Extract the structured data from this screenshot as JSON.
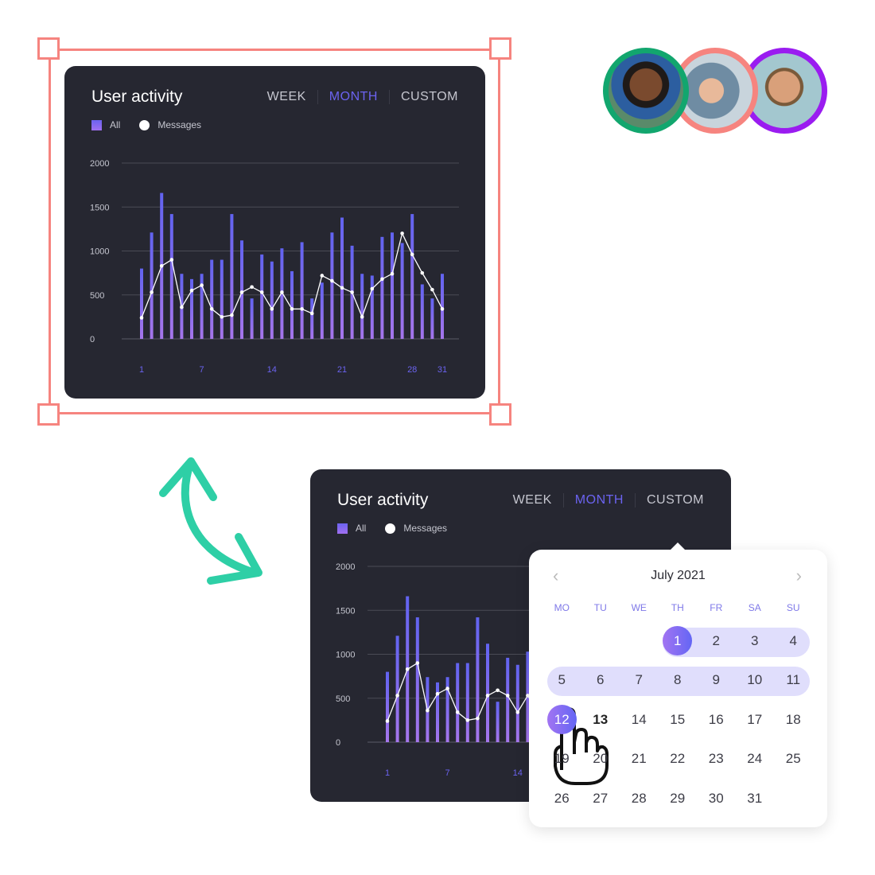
{
  "widget": {
    "title": "User activity",
    "tabs": [
      "WEEK",
      "MONTH",
      "CUSTOM"
    ],
    "active_tab": "MONTH",
    "legend": [
      {
        "label": "All",
        "color": "#6b63f0"
      },
      {
        "label": "Messages",
        "color": "#ffffff"
      }
    ]
  },
  "chart_data": {
    "type": "bar+line",
    "ylim": [
      0,
      2000
    ],
    "yticks": [
      "0",
      "500",
      "1000",
      "1500",
      "2000"
    ],
    "xticks": [
      {
        "day": 1,
        "label": "1"
      },
      {
        "day": 7,
        "label": "7"
      },
      {
        "day": 14,
        "label": "14"
      },
      {
        "day": 21,
        "label": "21"
      },
      {
        "day": 28,
        "label": "28"
      },
      {
        "day": 31,
        "label": "31"
      }
    ],
    "x": [
      1,
      2,
      3,
      4,
      5,
      6,
      7,
      8,
      9,
      10,
      11,
      12,
      13,
      14,
      15,
      16,
      17,
      18,
      19,
      20,
      21,
      22,
      23,
      24,
      25,
      26,
      27,
      28,
      29,
      30,
      31
    ],
    "series": [
      {
        "name": "All",
        "type": "bar",
        "color": "#6b63f0",
        "values": [
          800,
          1210,
          1660,
          1420,
          740,
          680,
          740,
          900,
          900,
          1420,
          1120,
          460,
          960,
          880,
          1030,
          770,
          1100,
          460,
          640,
          1210,
          1380,
          1060,
          740,
          720,
          1160,
          1210,
          1090,
          1420,
          620,
          460,
          740
        ]
      },
      {
        "name": "Messages",
        "type": "line",
        "color": "#ffffff",
        "values": [
          240,
          530,
          830,
          900,
          360,
          550,
          610,
          340,
          250,
          270,
          530,
          590,
          530,
          340,
          530,
          340,
          340,
          290,
          720,
          660,
          580,
          530,
          250,
          570,
          680,
          740,
          1200,
          960,
          750,
          560,
          340
        ]
      }
    ],
    "grid": true
  },
  "calendar": {
    "month": "July 2021",
    "prev_icon": "chevron-left-icon",
    "next_icon": "chevron-right-icon",
    "weekdays": [
      "MO",
      "TU",
      "WE",
      "TH",
      "FR",
      "SA",
      "SU"
    ],
    "weeks": [
      [
        "",
        "",
        "",
        "1",
        "2",
        "3",
        "4"
      ],
      [
        "5",
        "6",
        "7",
        "8",
        "9",
        "10",
        "11"
      ],
      [
        "12",
        "13",
        "14",
        "15",
        "16",
        "17",
        "18"
      ],
      [
        "19",
        "20",
        "21",
        "22",
        "23",
        "24",
        "25"
      ],
      [
        "26",
        "27",
        "28",
        "29",
        "30",
        "31",
        ""
      ]
    ],
    "selected": [
      "1",
      "12"
    ],
    "hovered": "13",
    "range_start": "1",
    "range_end": "11"
  },
  "colors": {
    "card": "#262731",
    "accent": "#6b63f0",
    "selection": "#f6847f",
    "arrow": "#2ecfa6"
  },
  "avatars": [
    {
      "border": "#12a66e"
    },
    {
      "border": "#f6847f"
    },
    {
      "border": "#9a1cf0"
    }
  ]
}
